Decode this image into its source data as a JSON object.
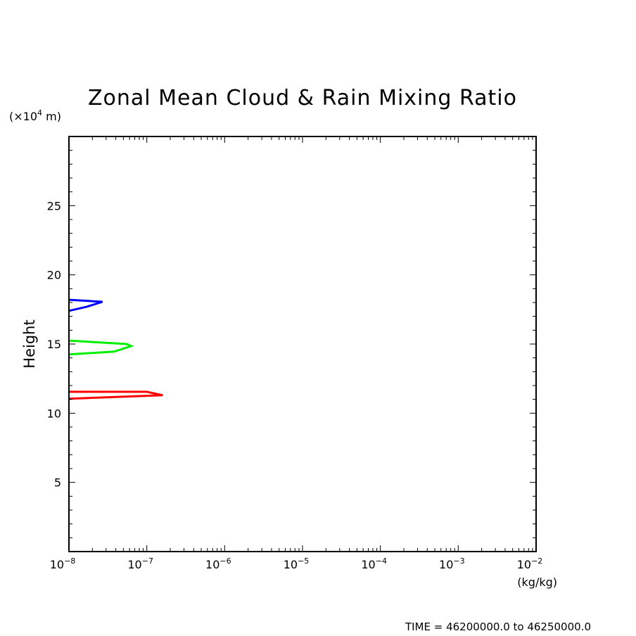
{
  "chart_data": {
    "type": "line",
    "title": "Zonal Mean Cloud & Rain Mixing Ratio",
    "ylabel": "Height",
    "yunit_prefix": "(×10",
    "yunit_exp": "4",
    "yunit_suffix": " m)",
    "xunit": "(kg/kg)",
    "xscale": "log",
    "xlim": [
      1e-08,
      0.01
    ],
    "ylim": [
      0,
      30
    ],
    "x_tick_labels": [
      {
        "base": "10",
        "exp": "−8"
      },
      {
        "base": "10",
        "exp": "−7"
      },
      {
        "base": "10",
        "exp": "−6"
      },
      {
        "base": "10",
        "exp": "−5"
      },
      {
        "base": "10",
        "exp": "−4"
      },
      {
        "base": "10",
        "exp": "−3"
      },
      {
        "base": "10",
        "exp": "−2"
      }
    ],
    "y_ticks": [
      5,
      10,
      15,
      20,
      25
    ],
    "grid": false,
    "legend": "none",
    "series": [
      {
        "color": "#0000ff",
        "points": [
          {
            "x": 1e-08,
            "y": 18.2
          },
          {
            "x": 2.7e-08,
            "y": 18.05
          },
          {
            "x": 1.7e-08,
            "y": 17.7
          },
          {
            "x": 1e-08,
            "y": 17.4
          }
        ]
      },
      {
        "color": "#00ee00",
        "points": [
          {
            "x": 1e-08,
            "y": 15.25
          },
          {
            "x": 5.5e-08,
            "y": 15.0
          },
          {
            "x": 6.3e-08,
            "y": 14.85
          },
          {
            "x": 3.8e-08,
            "y": 14.45
          },
          {
            "x": 1e-08,
            "y": 14.25
          }
        ]
      },
      {
        "color": "#ff0000",
        "points": [
          {
            "x": 1e-08,
            "y": 11.55
          },
          {
            "x": 1e-07,
            "y": 11.55
          },
          {
            "x": 1.6e-07,
            "y": 11.3
          },
          {
            "x": 1e-08,
            "y": 11.05
          }
        ]
      }
    ]
  },
  "footer": {
    "time_text": "TIME = 46200000.0 to 46250000.0"
  }
}
